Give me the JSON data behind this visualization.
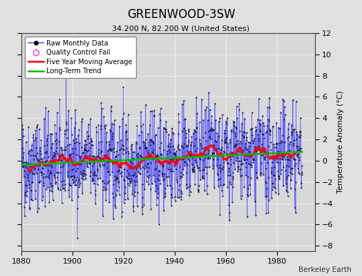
{
  "title": "GREENWOOD-3SW",
  "subtitle": "34.200 N, 82.200 W (United States)",
  "ylabel": "Temperature Anomaly (°C)",
  "credit": "Berkeley Earth",
  "xlim": [
    1880,
    1995
  ],
  "ylim": [
    -8.5,
    12
  ],
  "yticks": [
    -8,
    -6,
    -4,
    -2,
    0,
    2,
    4,
    6,
    8,
    10,
    12
  ],
  "xticks": [
    1880,
    1900,
    1920,
    1940,
    1960,
    1980
  ],
  "bg_color": "#e0e0e0",
  "plot_bg_color": "#d8d8d8",
  "grid_color": "#ffffff",
  "raw_line_color": "#5555ff",
  "raw_marker_color": "#111111",
  "moving_avg_color": "#ff0000",
  "trend_color": "#00bb00",
  "qc_fail_color": "#ff44ff",
  "seed": 42,
  "n_years": 110,
  "start_year": 1880,
  "noise_std": 2.2,
  "moving_avg_window": 60
}
